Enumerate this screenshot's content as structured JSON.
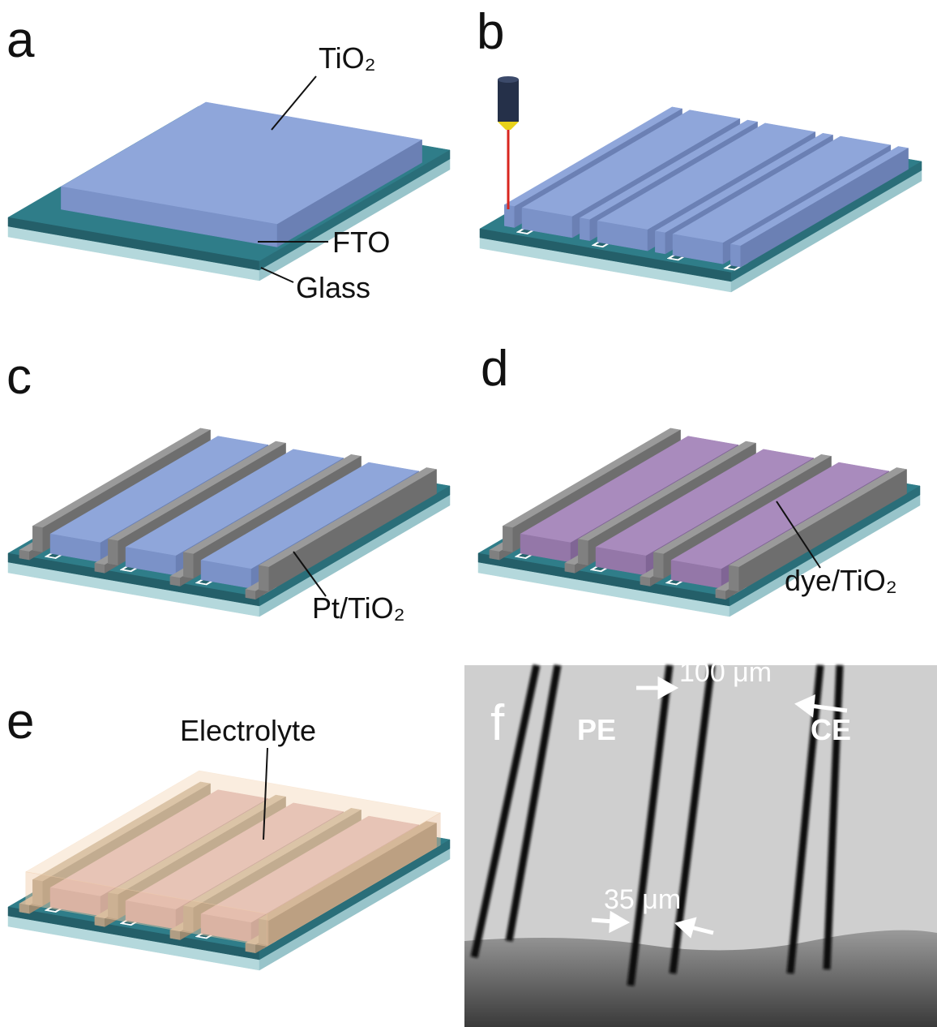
{
  "panels": [
    {
      "label": "a",
      "annotations": [
        "TiO₂",
        "FTO",
        "Glass"
      ]
    },
    {
      "label": "b"
    },
    {
      "label": "c",
      "annotations": [
        "Pt/TiO₂"
      ]
    },
    {
      "label": "d",
      "annotations": [
        "dye/TiO₂"
      ]
    },
    {
      "label": "e",
      "annotations": [
        "Electrolyte"
      ]
    },
    {
      "label": "f",
      "annotations": [
        "PE",
        "CE",
        "100 μm",
        "35 μm"
      ]
    }
  ]
}
